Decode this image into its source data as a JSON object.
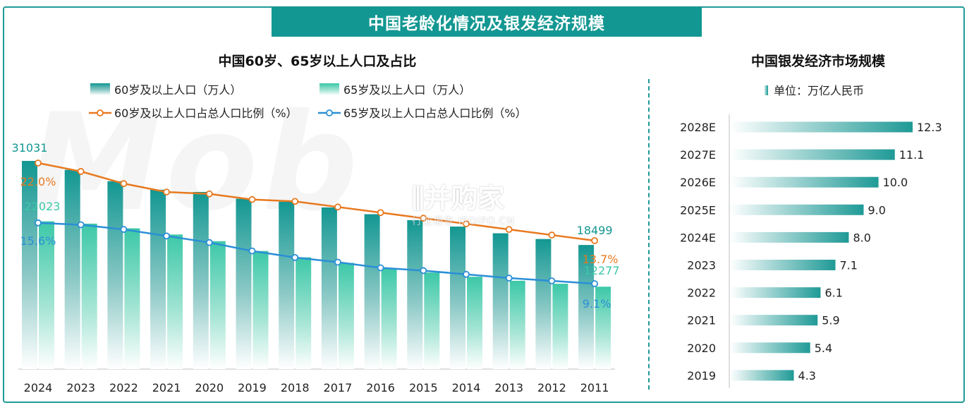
{
  "banner": "中国老龄化情况及银发经济规模",
  "left_title": "中国60岁、65岁以上人口及占比",
  "right_title": "中国银发经济市场规模",
  "right_legend": "单位：万亿人民币",
  "colors": {
    "teal": "#139792",
    "mint": "#3cc8a8",
    "orange": "#e8791f",
    "blue": "#2b8fd6",
    "bar_right": "#1f9a96"
  },
  "chart_data": [
    {
      "type": "bar",
      "title": "中国60岁、65岁以上人口及占比",
      "categories": [
        "2024",
        "2023",
        "2022",
        "2021",
        "2020",
        "2019",
        "2018",
        "2017",
        "2016",
        "2015",
        "2014",
        "2013",
        "2012",
        "2011"
      ],
      "series": [
        {
          "name": "60岁及以上人口（万人）",
          "kind": "bar",
          "values": [
            31031,
            29697,
            28004,
            26736,
            26402,
            25388,
            24949,
            24090,
            23086,
            22200,
            21242,
            20243,
            19390,
            18499
          ],
          "labels": {
            "0": "31031",
            "13": "18499"
          }
        },
        {
          "name": "65岁及以上人口（万人）",
          "kind": "bar",
          "values": [
            22023,
            21676,
            20978,
            20056,
            19064,
            17603,
            16658,
            15831,
            15003,
            14386,
            13755,
            13161,
            12714,
            12277
          ],
          "labels": {
            "0": "22023",
            "13": "12277"
          }
        },
        {
          "name": "60岁及以上人口占总人口比例（%）",
          "kind": "line",
          "values": [
            22.0,
            21.1,
            19.8,
            18.9,
            18.7,
            18.1,
            17.9,
            17.3,
            16.7,
            16.1,
            15.5,
            14.9,
            14.3,
            13.7
          ],
          "labels": {
            "0": "22.0%",
            "13": "13.7%"
          }
        },
        {
          "name": "65岁及以上人口占总人口比例（%）",
          "kind": "line",
          "values": [
            15.6,
            15.4,
            14.9,
            14.2,
            13.5,
            12.6,
            11.9,
            11.4,
            10.8,
            10.5,
            10.1,
            9.7,
            9.4,
            9.1
          ],
          "labels": {
            "0": "15.6%",
            "13": "9.1%"
          }
        }
      ],
      "legend_placement": "top",
      "grid": false
    },
    {
      "type": "bar",
      "orientation": "horizontal",
      "title": "中国银发经济市场规模",
      "unit": "单位：万亿人民币",
      "categories": [
        "2028E",
        "2027E",
        "2026E",
        "2025E",
        "2024E",
        "2023",
        "2022",
        "2021",
        "2020",
        "2019"
      ],
      "values": [
        12.3,
        11.1,
        10.0,
        9.0,
        8.0,
        7.1,
        6.1,
        5.9,
        5.4,
        4.3
      ],
      "value_labels": [
        "12.3",
        "11.1",
        "10.0",
        "9.0",
        "8.0",
        "7.1",
        "6.1",
        "5.9",
        "5.4",
        "4.3"
      ],
      "grid": false
    }
  ]
}
